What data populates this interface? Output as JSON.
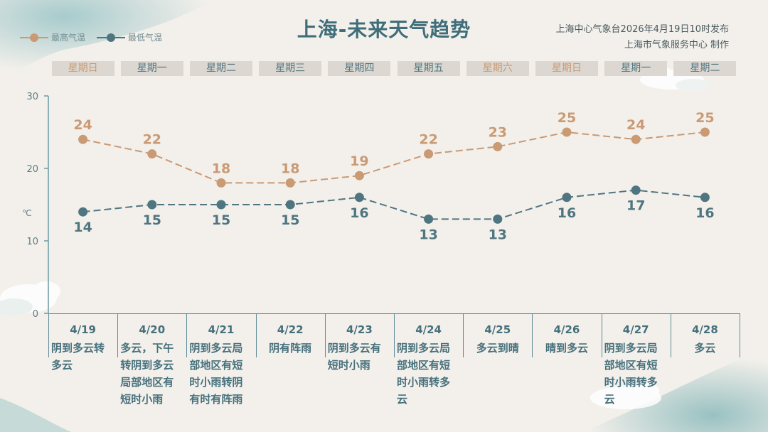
{
  "header": {
    "title": "上海-未来天气趋势",
    "publish_line1": "上海中心气象台2026年4月19日10时发布",
    "publish_line2": "上海市气象服务中心 制作"
  },
  "legend": {
    "max_label": "最高气温",
    "min_label": "最低气温"
  },
  "colors": {
    "max": "#c99a74",
    "min": "#4f7581",
    "weekend_text": "#c99a74",
    "weekday_text": "#4f7581"
  },
  "chart_data": {
    "type": "line",
    "categories": [
      "4/19",
      "4/20",
      "4/21",
      "4/22",
      "4/23",
      "4/24",
      "4/25",
      "4/26",
      "4/27",
      "4/28"
    ],
    "weekdays": [
      "星期日",
      "星期一",
      "星期二",
      "星期三",
      "星期四",
      "星期五",
      "星期六",
      "星期日",
      "星期一",
      "星期二"
    ],
    "weekend": [
      true,
      false,
      false,
      false,
      false,
      false,
      true,
      true,
      false,
      false
    ],
    "ylabel": "℃",
    "ylim": [
      0,
      30
    ],
    "yticks": [
      "0",
      "10",
      "20",
      "30"
    ],
    "series": [
      {
        "name": "最高气温",
        "values": [
          24,
          22,
          18,
          18,
          19,
          22,
          23,
          25,
          24,
          25
        ]
      },
      {
        "name": "最低气温",
        "values": [
          14,
          15,
          15,
          15,
          16,
          13,
          13,
          16,
          17,
          16
        ]
      }
    ],
    "descriptions": [
      "阴到多云转多云",
      "多云，下午转阴到多云局部地区有短时小雨",
      "阴到多云局部地区有短时小雨转阴有时有阵雨",
      "阴有阵雨",
      "阴到多云有短时小雨",
      "阴到多云局部地区有短时小雨转多云",
      "多云到晴",
      "晴到多云",
      "阴到多云局部地区有短时小雨转多云",
      "多云"
    ]
  }
}
